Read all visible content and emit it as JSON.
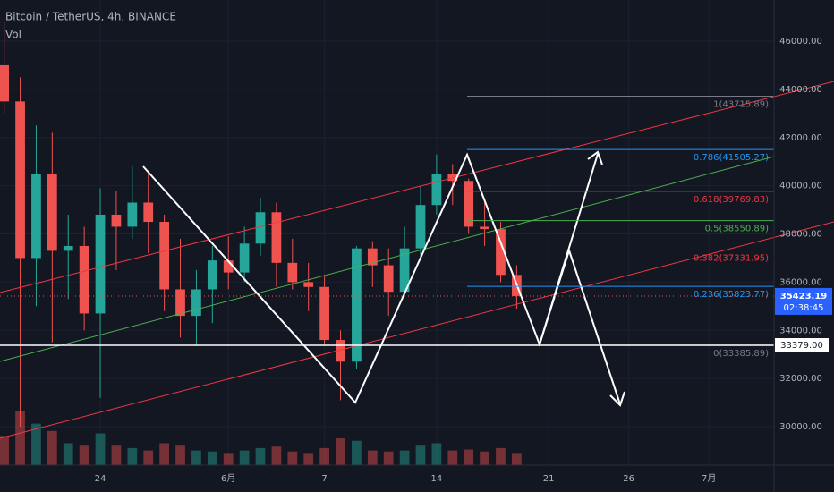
{
  "chart_data": {
    "type": "candlestick",
    "title": "Bitcoin / TetherUS, 4h, BINANCE",
    "volume_label": "Vol",
    "x": [
      18,
      19,
      20,
      21,
      22,
      23,
      24,
      25,
      26,
      27,
      28,
      29,
      30,
      31,
      32,
      33,
      34,
      35,
      36,
      37,
      38,
      39,
      40,
      41,
      42,
      43,
      44,
      45,
      46,
      47,
      48,
      49,
      50
    ],
    "open": [
      45000,
      43500,
      37000,
      40500,
      37300,
      37500,
      34700,
      38800,
      38300,
      39300,
      38500,
      35700,
      34600,
      35700,
      36900,
      36400,
      37600,
      38900,
      36800,
      36000,
      35800,
      33600,
      32700,
      37400,
      36700,
      35600,
      37400,
      39200,
      40500,
      40200,
      38300,
      38200,
      36300
    ],
    "high": [
      46800,
      44500,
      42500,
      42200,
      38800,
      38300,
      39900,
      39800,
      40800,
      40500,
      38800,
      37800,
      36500,
      37500,
      37900,
      38300,
      39500,
      39300,
      37800,
      36800,
      36300,
      34000,
      37500,
      37700,
      37400,
      38300,
      40000,
      41300,
      40900,
      40300,
      39300,
      38500,
      36700
    ],
    "low": [
      43000,
      30000,
      35000,
      33500,
      35300,
      34000,
      31200,
      36500,
      37800,
      37200,
      34800,
      33700,
      33400,
      34300,
      35700,
      36000,
      37100,
      35800,
      35700,
      34800,
      33400,
      31100,
      32400,
      35800,
      34600,
      35400,
      37000,
      38800,
      39200,
      38000,
      37500,
      36000,
      34900
    ],
    "close": [
      43500,
      37000,
      40500,
      37300,
      37500,
      34700,
      38800,
      38300,
      39300,
      38500,
      35700,
      34600,
      35700,
      36900,
      36400,
      37600,
      38900,
      36800,
      36000,
      35800,
      33600,
      32700,
      37400,
      36700,
      35600,
      37400,
      39200,
      40500,
      40200,
      38300,
      38200,
      36300,
      35423.19
    ],
    "volume": [
      60,
      110,
      85,
      70,
      45,
      40,
      65,
      40,
      35,
      30,
      45,
      40,
      30,
      28,
      25,
      30,
      35,
      38,
      28,
      25,
      35,
      55,
      50,
      30,
      28,
      30,
      40,
      45,
      30,
      32,
      28,
      35,
      25
    ],
    "xlim": [
      17.74,
      66.07
    ],
    "xticks": [
      {
        "value": 24,
        "label": "24"
      },
      {
        "value": 32,
        "label": "6月"
      },
      {
        "value": 38,
        "label": "7"
      },
      {
        "value": 45,
        "label": "14"
      },
      {
        "value": 52,
        "label": "21"
      },
      {
        "value": 57,
        "label": "26"
      },
      {
        "value": 62,
        "label": "7月"
      }
    ],
    "ylim": [
      28405,
      47708
    ],
    "yticks": [
      {
        "value": 30000,
        "label": "30000.00"
      },
      {
        "value": 32000,
        "label": "32000.00"
      },
      {
        "value": 34000,
        "label": "34000.00"
      },
      {
        "value": 36000,
        "label": "36000.00"
      },
      {
        "value": 38000,
        "label": "38000.00"
      },
      {
        "value": 40000,
        "label": "40000.00"
      },
      {
        "value": 42000,
        "label": "42000.00"
      },
      {
        "value": 44000,
        "label": "44000.00"
      },
      {
        "value": 46000,
        "label": "46000.00"
      }
    ],
    "up_color": "#26a69a",
    "down_color": "#ef5350",
    "fib_levels": [
      {
        "value": 43715.89,
        "label": "1(43715.89)",
        "color": "#787b86"
      },
      {
        "value": 41505.27,
        "label": "0.786(41505.27)",
        "color": "#2196f3"
      },
      {
        "value": 39769.83,
        "label": "0.618(39769.83)",
        "color": "#f23645"
      },
      {
        "value": 38550.89,
        "label": "0.5(38550.89)",
        "color": "#4caf50"
      },
      {
        "value": 37331.95,
        "label": "0.382(37331.95)",
        "color": "#f23645"
      },
      {
        "value": 35823.77,
        "label": "0.236(35823.77)",
        "color": "#2196f3"
      },
      {
        "value": 33385.89,
        "label": "0(33385.89)",
        "color": "#787b86"
      }
    ],
    "horizontal_line": {
      "value": 33379,
      "label": "33379.00"
    },
    "last_price": 35423.19,
    "countdown": "02:38:45"
  }
}
